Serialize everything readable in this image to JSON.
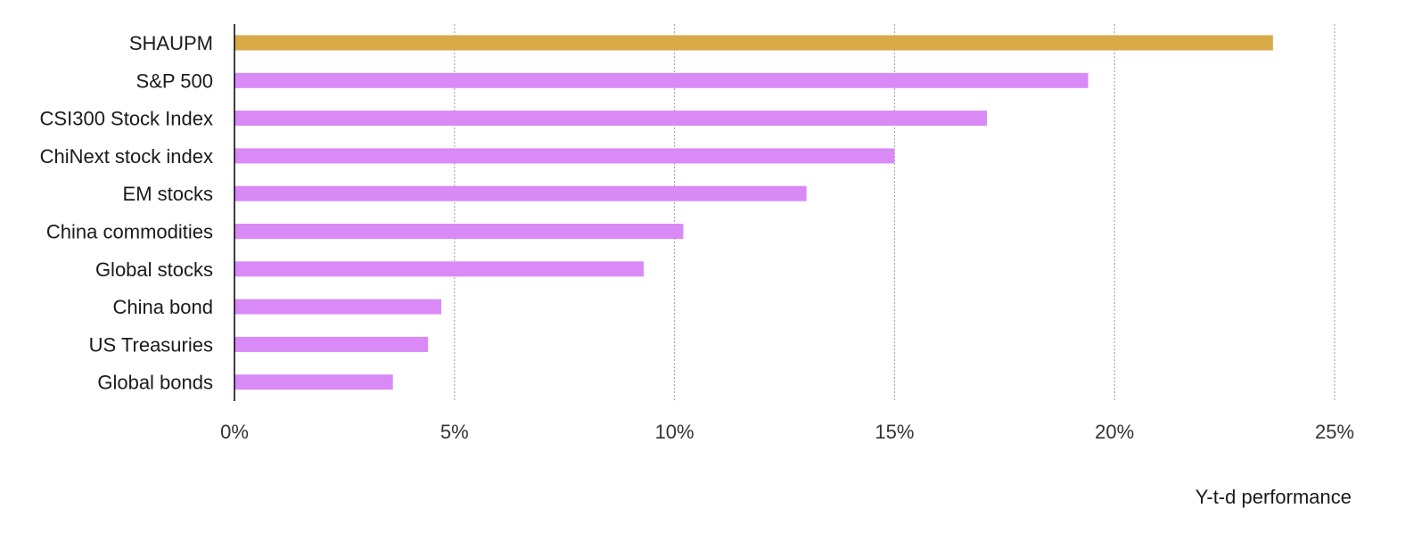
{
  "chart_data": {
    "type": "bar",
    "orientation": "horizontal",
    "categories": [
      "SHAUPM",
      "S&P 500",
      "CSI300 Stock Index",
      "ChiNext stock index",
      "EM stocks",
      "China commodities",
      "Global stocks",
      "China bond",
      "US Treasuries",
      "Global bonds"
    ],
    "values": [
      23.6,
      19.4,
      17.1,
      15.0,
      13.0,
      10.2,
      9.3,
      4.7,
      4.4,
      3.6
    ],
    "highlight_index": 0,
    "colors": {
      "highlight": "#d9aa48",
      "default": "#d98af7"
    },
    "xlim": [
      0,
      25
    ],
    "xticks": [
      0,
      5,
      10,
      15,
      20,
      25
    ],
    "xtick_labels": [
      "0%",
      "5%",
      "10%",
      "15%",
      "20%",
      "25%"
    ],
    "xlabel": "Y-t-d performance",
    "ylabel": "",
    "title": "",
    "grid": "vertical dashed",
    "legend": "none"
  }
}
